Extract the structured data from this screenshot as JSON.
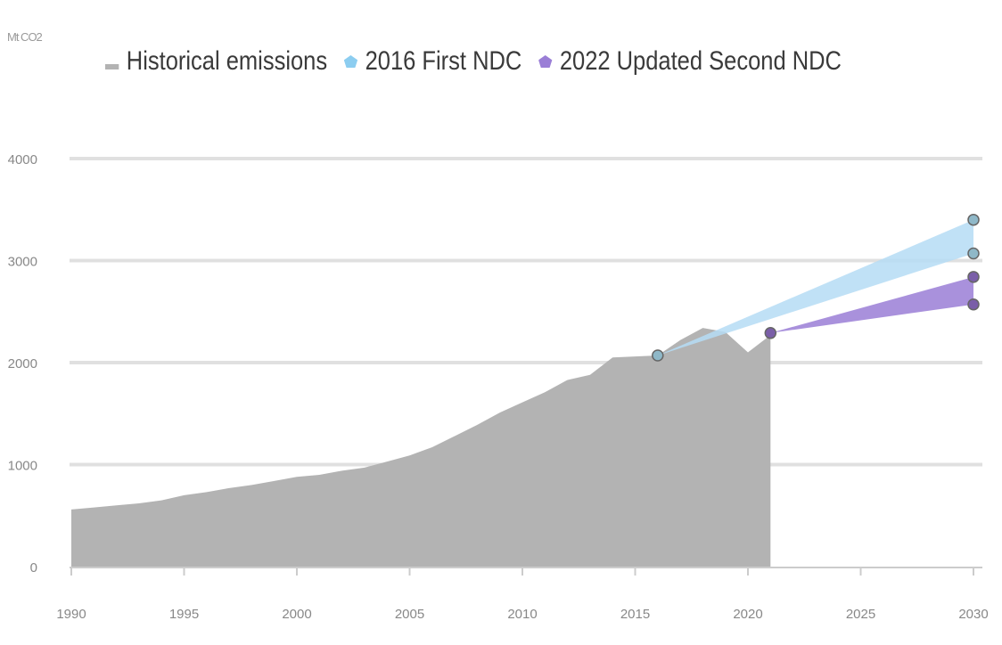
{
  "chart_data": {
    "type": "area",
    "unit_label": "Mt CO2",
    "legend": [
      {
        "label": "Historical emissions",
        "color": "#b3b3b3",
        "marker": "dash"
      },
      {
        "label": "2016 First NDC",
        "color": "#8ccdf0",
        "marker": "pentagon"
      },
      {
        "label": "2022 Updated Second NDC",
        "color": "#9a7ed6",
        "marker": "pentagon"
      }
    ],
    "ylim": [
      0,
      4000
    ],
    "yticks": [
      0,
      1000,
      2000,
      3000,
      4000
    ],
    "xlim": [
      1990,
      2030
    ],
    "xticks": [
      1990,
      1995,
      2000,
      2005,
      2010,
      2015,
      2020,
      2025,
      2030
    ],
    "grid": true,
    "legend_position": "top",
    "historical": {
      "x": [
        1990,
        1991,
        1992,
        1993,
        1994,
        1995,
        1996,
        1997,
        1998,
        1999,
        2000,
        2001,
        2002,
        2003,
        2004,
        2005,
        2006,
        2007,
        2008,
        2009,
        2010,
        2011,
        2012,
        2013,
        2014,
        2015,
        2016,
        2017,
        2018,
        2019,
        2020,
        2021
      ],
      "y": [
        560,
        580,
        600,
        620,
        650,
        700,
        730,
        770,
        800,
        840,
        880,
        900,
        940,
        970,
        1030,
        1090,
        1170,
        1280,
        1390,
        1510,
        1610,
        1710,
        1830,
        1880,
        2050,
        2060,
        2070,
        2220,
        2340,
        2300,
        2100,
        2270
      ]
    },
    "first_ndc": {
      "start": [
        2016,
        2070
      ],
      "end_upper": [
        2030,
        3400
      ],
      "end_lower": [
        2030,
        3070
      ]
    },
    "second_ndc": {
      "start": [
        2021,
        2290
      ],
      "end_upper": [
        2030,
        2840
      ],
      "end_lower": [
        2030,
        2570
      ]
    }
  }
}
